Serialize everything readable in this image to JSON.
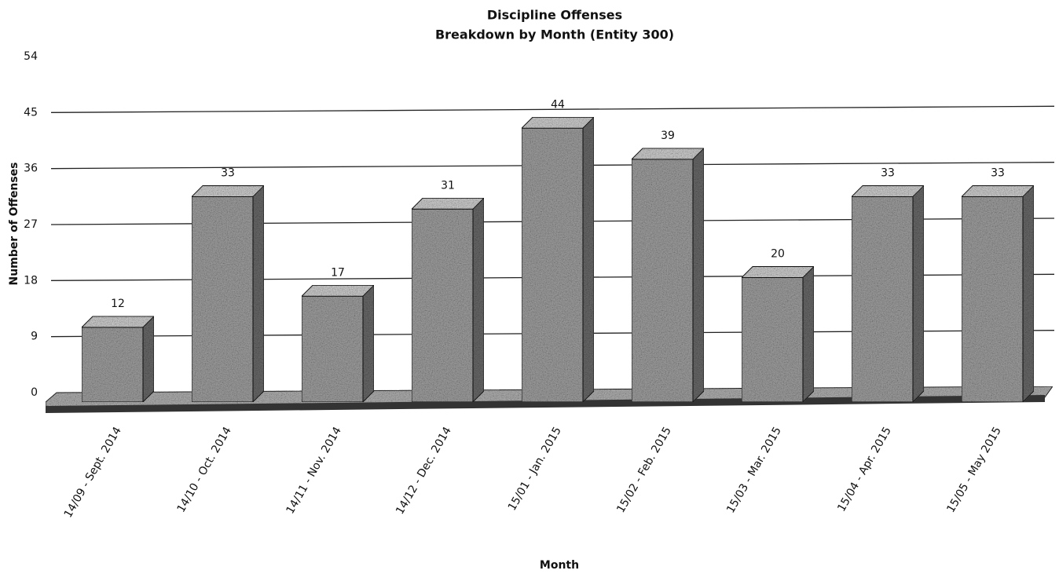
{
  "chart_data": {
    "type": "bar3d",
    "title": "Discipline Offenses",
    "subtitle": "Breakdown by Month (Entity 300)",
    "x_label": "Month",
    "y_label": "Number of Offenses",
    "categories": [
      "14/09 - Sept. 2014",
      "14/10 - Oct. 2014",
      "14/11 - Nov. 2014",
      "14/12 - Dec. 2014",
      "15/01 - Jan. 2015",
      "15/02 - Feb. 2015",
      "15/03 - Mar. 2015",
      "15/04 - Apr. 2015",
      "15/05 - May 2015"
    ],
    "values": [
      12,
      33,
      17,
      31,
      44,
      39,
      20,
      33,
      33
    ],
    "color": "#9a9a9a",
    "ylim": [
      0,
      54
    ],
    "yticks": [
      0,
      9,
      18,
      27,
      36,
      45,
      54
    ],
    "grid": true
  }
}
